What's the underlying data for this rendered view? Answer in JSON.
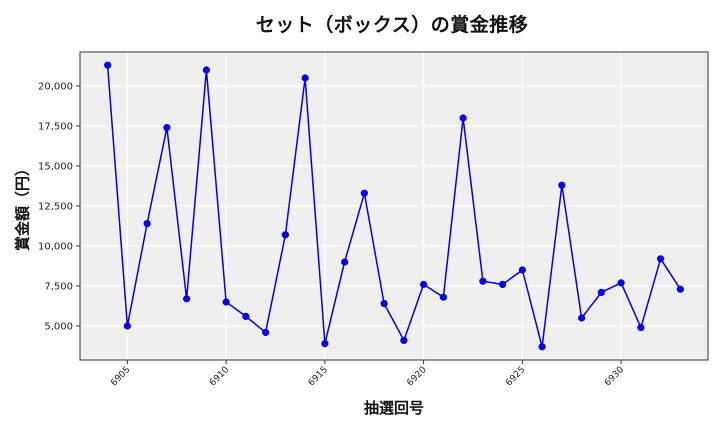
{
  "chart_data": {
    "type": "line",
    "title": "セット（ボックス）の賞金推移",
    "xlabel": "抽選回号",
    "ylabel": "賞金額（円）",
    "x": [
      6904,
      6905,
      6906,
      6907,
      6908,
      6909,
      6910,
      6911,
      6912,
      6913,
      6914,
      6915,
      6916,
      6917,
      6918,
      6919,
      6920,
      6921,
      6922,
      6923,
      6924,
      6925,
      6926,
      6927,
      6928,
      6929,
      6930,
      6931,
      6932,
      6933
    ],
    "series": [
      {
        "name": "賞金額",
        "color": "#0000ee",
        "marker": "circle",
        "values": [
          21300,
          5000,
          11400,
          17400,
          6700,
          21000,
          6500,
          5600,
          4600,
          10700,
          20500,
          3900,
          9000,
          13300,
          6400,
          4100,
          7600,
          6800,
          18000,
          7800,
          7600,
          8500,
          3700,
          13800,
          5500,
          7100,
          7700,
          4900,
          9200,
          7300
        ]
      }
    ],
    "xticks": [
      6905,
      6910,
      6915,
      6920,
      6925,
      6930
    ],
    "xtick_labels": [
      "6905",
      "6910",
      "6915",
      "6920",
      "6925",
      "6930"
    ],
    "yticks": [
      5000,
      7500,
      10000,
      12500,
      15000,
      17500,
      20000
    ],
    "ytick_labels": [
      "5,000",
      "7,500",
      "10,000",
      "12,500",
      "15,000",
      "17,500",
      "20,000"
    ],
    "xlim": [
      6902.6,
      6934.4
    ],
    "ylim": [
      2875,
      22125
    ],
    "grid": true,
    "legend": null,
    "plot_background": "#efefef"
  }
}
